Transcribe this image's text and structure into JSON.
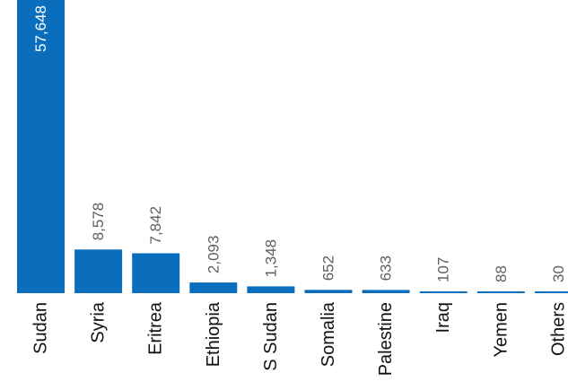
{
  "chart_data": {
    "type": "bar",
    "title": "",
    "xlabel": "",
    "ylabel": "",
    "categories": [
      "Sudan",
      "Syria",
      "Eritrea",
      "Ethiopia",
      "S Sudan",
      "Somalia",
      "Palestine",
      "Iraq",
      "Yemen",
      "Others"
    ],
    "values": [
      57648,
      8578,
      7842,
      2093,
      1348,
      652,
      633,
      107,
      88,
      30
    ],
    "value_labels": [
      "57,648",
      "8,578",
      "7,842",
      "2,093",
      "1,348",
      "652",
      "633",
      "107",
      "88",
      "30"
    ],
    "ylim": [
      0,
      57648
    ],
    "grid": false,
    "legend": "none",
    "bar_color": "#0a6ebd",
    "inside_label_color": "#ffffff",
    "outside_label_color": "#5f5f5f",
    "category_label_color": "#111111"
  }
}
